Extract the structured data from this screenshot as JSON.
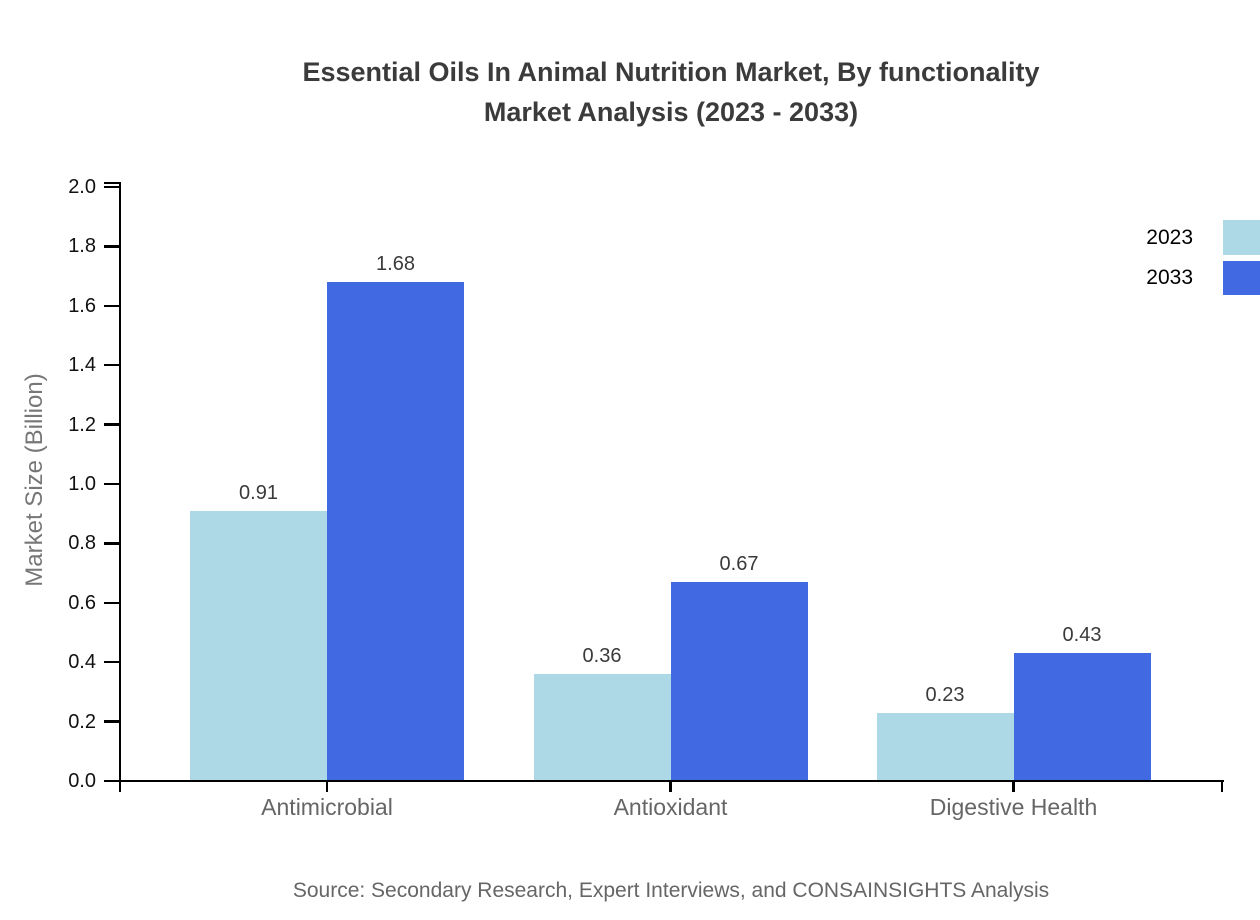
{
  "header": {
    "title_line1": "Essential Oils In Animal Nutrition Market, By functionality",
    "title_line2": "Market Analysis (2023 - 2033)"
  },
  "footer": {
    "source_note": "Source: Secondary Research, Expert Interviews, and CONSAINSIGHTS Analysis"
  },
  "chart_data": {
    "type": "bar",
    "title": "Essential Oils In Animal Nutrition Market, By functionality Market Analysis (2023 - 2033)",
    "categories": [
      "Antimicrobial",
      "Antioxidant",
      "Digestive Health"
    ],
    "series": [
      {
        "name": "2023",
        "color": "#ADD8E6",
        "values": [
          0.91,
          0.36,
          0.23
        ]
      },
      {
        "name": "2033",
        "color": "#4169E1",
        "values": [
          1.68,
          0.67,
          0.43
        ]
      }
    ],
    "xlabel": "",
    "ylabel": "Market Size (Billion)",
    "ylim": [
      0.0,
      2.0
    ],
    "ytick_step": 0.2,
    "grid": false,
    "legend_position": "upper right outside",
    "value_labels_shown": true
  }
}
